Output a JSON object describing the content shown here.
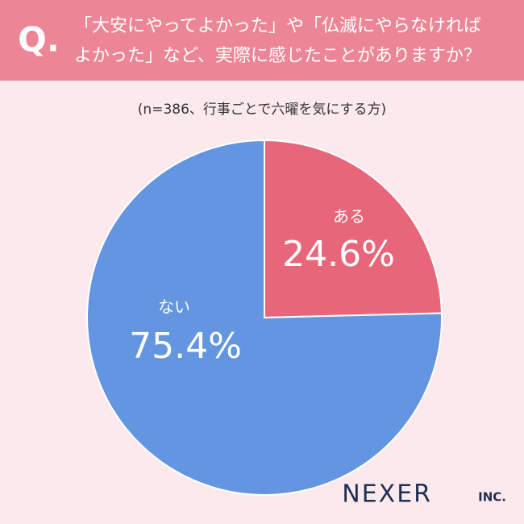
{
  "header": {
    "q_mark": "Q.",
    "title_lines": [
      "「大安にやってよかった」や「仏滅にやらなければ",
      "よかった」など、実際に感じたことがありますか？"
    ]
  },
  "chart_data": {
    "type": "pie",
    "subtitle": "(n=386、行事ごとで六曜を気にする方)",
    "categories": [
      "ある",
      "ない"
    ],
    "values": [
      24.6,
      75.4
    ],
    "value_labels": [
      "24.6%",
      "75.4%"
    ],
    "colors": [
      "#e8667a",
      "#6395e0"
    ]
  },
  "logo": {
    "name": "NEXER",
    "suffix": "INC."
  }
}
